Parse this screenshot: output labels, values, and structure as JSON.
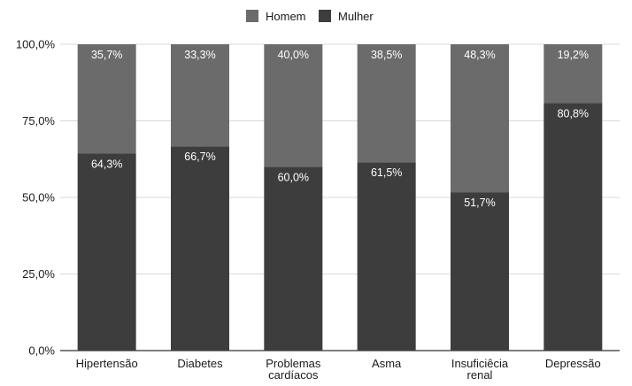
{
  "chart_data": {
    "type": "bar",
    "stacked": true,
    "title": "",
    "xlabel": "",
    "ylabel": "",
    "ylim": [
      0,
      100
    ],
    "y_ticks": [
      {
        "value": 0,
        "label": "0,0%"
      },
      {
        "value": 25,
        "label": "25,0%"
      },
      {
        "value": 50,
        "label": "50,0%"
      },
      {
        "value": 75,
        "label": "75,0%"
      },
      {
        "value": 100,
        "label": "100,0%"
      }
    ],
    "grid": true,
    "legend_position": "top-center",
    "categories": [
      [
        "Hipertensão"
      ],
      [
        "Diabetes"
      ],
      [
        "Problemas",
        "cardíacos"
      ],
      [
        "Asma"
      ],
      [
        "Insuficiêcia",
        "renal"
      ],
      [
        "Depressão"
      ]
    ],
    "series": [
      {
        "name": "Mulher",
        "color": "#3d3d3d",
        "values": [
          64.3,
          66.7,
          60.0,
          61.5,
          51.7,
          80.8
        ],
        "labels": [
          "64,3%",
          "66,7%",
          "60,0%",
          "61,5%",
          "51,7%",
          "80,8%"
        ]
      },
      {
        "name": "Homem",
        "color": "#6b6b6b",
        "values": [
          35.7,
          33.3,
          40.0,
          38.5,
          48.3,
          19.2
        ],
        "labels": [
          "35,7%",
          "33,3%",
          "40,0%",
          "38,5%",
          "48,3%",
          "19,2%"
        ]
      }
    ],
    "legend_order": [
      "Homem",
      "Mulher"
    ],
    "colors": {
      "grid": "#d9d9d9",
      "axis": "#333333",
      "text": "#1a1a1a",
      "label_text": "#ffffff"
    }
  }
}
